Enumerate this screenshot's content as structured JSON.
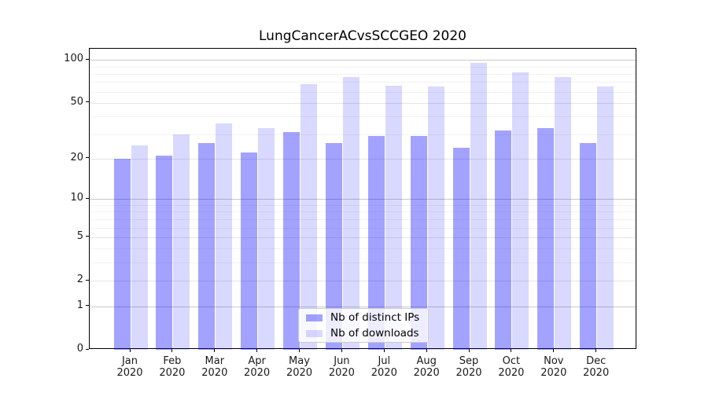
{
  "title": "LungCancerACvsSCCGEO 2020",
  "chart_data": {
    "type": "bar",
    "title": "LungCancerACvsSCCGEO 2020",
    "categories": [
      "Jan",
      "Feb",
      "Mar",
      "Apr",
      "May",
      "Jun",
      "Jul",
      "Aug",
      "Sep",
      "Oct",
      "Nov",
      "Dec"
    ],
    "category_year": "2020",
    "series": [
      {
        "name": "Nb of distinct IPs",
        "color": "rgba(0,0,255,0.36)",
        "color_hex": "#a3a3f0",
        "values": [
          20,
          21,
          26,
          22,
          31,
          26,
          29,
          29,
          24,
          32,
          33,
          26
        ]
      },
      {
        "name": "Nb of downloads",
        "color": "rgba(0,0,255,0.15)",
        "color_hex": "#dadaf8",
        "values": [
          25,
          30,
          36,
          33,
          68,
          76,
          66,
          65,
          95,
          82,
          76,
          65
        ]
      }
    ],
    "yscale": "log1p",
    "y_major_ticks": [
      0,
      1,
      2,
      5,
      10,
      20,
      50,
      100
    ],
    "y_decade_ticks": [
      1,
      10,
      100
    ],
    "y_minor_gridlines": [
      3,
      4,
      6,
      7,
      8,
      9,
      30,
      40,
      60,
      70,
      80,
      90
    ],
    "ylim": [
      0,
      118
    ],
    "xlabel": "",
    "ylabel": "",
    "grid": true,
    "legend_position": "lower center"
  },
  "colors": {
    "grid_decade": "#c9c9c9",
    "grid_major": "#e4e4e4",
    "grid_minor": "#f2f2f2",
    "spine": "#000000",
    "legend_border": "#cccccc",
    "legend_background": "rgba(255,255,255,0.8)"
  }
}
